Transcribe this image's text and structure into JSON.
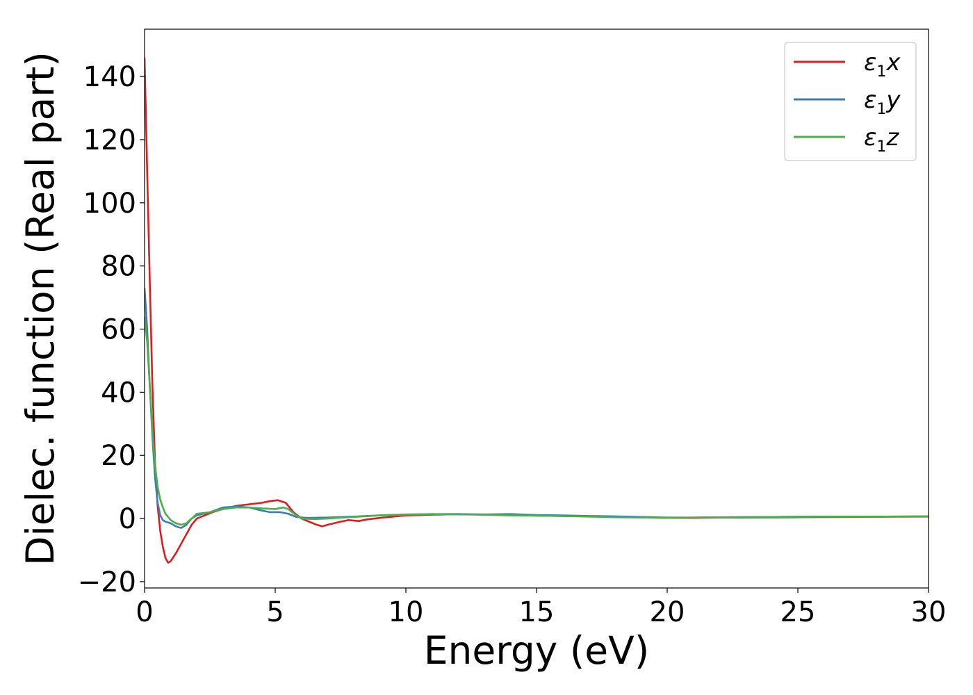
{
  "chart_data": {
    "type": "line",
    "title": "",
    "xlabel": "Energy (eV)",
    "ylabel": "Dielec. function (Real part)",
    "xlim": [
      0,
      30
    ],
    "ylim": [
      -22,
      155
    ],
    "xticks": [
      0,
      5,
      10,
      15,
      20,
      25,
      30
    ],
    "yticks": [
      -20,
      0,
      20,
      40,
      60,
      80,
      100,
      120,
      140
    ],
    "xtick_labels": [
      "0",
      "5",
      "10",
      "15",
      "20",
      "25",
      "30"
    ],
    "ytick_labels": [
      "−20",
      "0",
      "20",
      "40",
      "60",
      "80",
      "100",
      "120",
      "140"
    ],
    "grid": false,
    "legend_position": "top-right",
    "series": [
      {
        "name": "ε1x",
        "color": "#e41a1c",
        "points": [
          [
            0,
            146
          ],
          [
            0.1,
            110
          ],
          [
            0.2,
            75
          ],
          [
            0.3,
            42
          ],
          [
            0.4,
            18
          ],
          [
            0.5,
            4
          ],
          [
            0.6,
            -4
          ],
          [
            0.7,
            -9
          ],
          [
            0.8,
            -12.5
          ],
          [
            0.9,
            -14
          ],
          [
            1.0,
            -13.5
          ],
          [
            1.2,
            -11
          ],
          [
            1.5,
            -6.5
          ],
          [
            1.8,
            -2
          ],
          [
            2.0,
            0
          ],
          [
            2.3,
            1
          ],
          [
            2.6,
            2
          ],
          [
            3.0,
            3
          ],
          [
            3.5,
            4
          ],
          [
            4.0,
            4.5
          ],
          [
            4.5,
            5
          ],
          [
            4.8,
            5.5
          ],
          [
            5.1,
            5.8
          ],
          [
            5.4,
            5
          ],
          [
            5.7,
            2
          ],
          [
            6.0,
            0
          ],
          [
            6.3,
            -1
          ],
          [
            6.6,
            -2
          ],
          [
            6.8,
            -2.5
          ],
          [
            7.0,
            -2
          ],
          [
            7.5,
            -1
          ],
          [
            7.8,
            -0.5
          ],
          [
            8.2,
            -0.8
          ],
          [
            8.5,
            -0.3
          ],
          [
            9.0,
            0.2
          ],
          [
            10.0,
            1
          ],
          [
            11.0,
            1.2
          ],
          [
            12.0,
            1.4
          ],
          [
            13.0,
            1.2
          ],
          [
            14.0,
            1.1
          ],
          [
            15.0,
            0.9
          ],
          [
            16.0,
            0.8
          ],
          [
            17.0,
            0.7
          ],
          [
            18.0,
            0.6
          ],
          [
            19.0,
            0.4
          ],
          [
            20.0,
            0.2
          ],
          [
            21.0,
            0.2
          ],
          [
            22.0,
            0.3
          ],
          [
            23.0,
            0.3
          ],
          [
            25.0,
            0.4
          ],
          [
            27.0,
            0.5
          ],
          [
            30.0,
            0.6
          ]
        ]
      },
      {
        "name": "ε1y",
        "color": "#377eb8",
        "points": [
          [
            0,
            73
          ],
          [
            0.1,
            60
          ],
          [
            0.2,
            42
          ],
          [
            0.3,
            26
          ],
          [
            0.4,
            13
          ],
          [
            0.5,
            5
          ],
          [
            0.6,
            1
          ],
          [
            0.7,
            -0.5
          ],
          [
            0.8,
            -1
          ],
          [
            1.0,
            -1.5
          ],
          [
            1.2,
            -2.5
          ],
          [
            1.4,
            -3
          ],
          [
            1.6,
            -2
          ],
          [
            1.8,
            0
          ],
          [
            2.0,
            1
          ],
          [
            2.5,
            2
          ],
          [
            3.0,
            3.5
          ],
          [
            3.5,
            3.8
          ],
          [
            4.0,
            3.5
          ],
          [
            4.5,
            2.5
          ],
          [
            4.8,
            2
          ],
          [
            5.2,
            2
          ],
          [
            5.5,
            1.5
          ],
          [
            5.8,
            0.5
          ],
          [
            6.2,
            0.2
          ],
          [
            7.0,
            0.3
          ],
          [
            8.0,
            0.6
          ],
          [
            9.0,
            1
          ],
          [
            10.0,
            1.2
          ],
          [
            11.0,
            1.4
          ],
          [
            12.0,
            1.4
          ],
          [
            13.0,
            1.3
          ],
          [
            14.0,
            1.4
          ],
          [
            15.0,
            1.1
          ],
          [
            16.0,
            1
          ],
          [
            17.0,
            0.8
          ],
          [
            18.0,
            0.7
          ],
          [
            19.0,
            0.5
          ],
          [
            20.0,
            0.3
          ],
          [
            21.0,
            0.3
          ],
          [
            22.0,
            0.4
          ],
          [
            24.0,
            0.5
          ],
          [
            26.0,
            0.6
          ],
          [
            28.0,
            0.6
          ],
          [
            30.0,
            0.7
          ]
        ]
      },
      {
        "name": "ε1z",
        "color": "#4daf4a",
        "points": [
          [
            0,
            64
          ],
          [
            0.1,
            56
          ],
          [
            0.2,
            42
          ],
          [
            0.3,
            28
          ],
          [
            0.4,
            17
          ],
          [
            0.5,
            10
          ],
          [
            0.6,
            6
          ],
          [
            0.7,
            3.5
          ],
          [
            0.8,
            1.5
          ],
          [
            1.0,
            -0.5
          ],
          [
            1.2,
            -1.5
          ],
          [
            1.4,
            -2
          ],
          [
            1.6,
            -1.5
          ],
          [
            1.8,
            0
          ],
          [
            2.0,
            1.5
          ],
          [
            2.5,
            2
          ],
          [
            3.0,
            3
          ],
          [
            3.5,
            3.5
          ],
          [
            4.0,
            3.5
          ],
          [
            4.5,
            3.2
          ],
          [
            5.0,
            3
          ],
          [
            5.3,
            3.5
          ],
          [
            5.5,
            3
          ],
          [
            5.8,
            1
          ],
          [
            6.0,
            0
          ],
          [
            6.5,
            -0.2
          ],
          [
            7.0,
            0
          ],
          [
            8.0,
            0.5
          ],
          [
            9.0,
            1
          ],
          [
            10.0,
            1.3
          ],
          [
            11.0,
            1.4
          ],
          [
            12.0,
            1.3
          ],
          [
            13.0,
            1.2
          ],
          [
            14.0,
            1
          ],
          [
            15.0,
            0.9
          ],
          [
            16.0,
            0.8
          ],
          [
            17.0,
            0.6
          ],
          [
            18.0,
            0.4
          ],
          [
            19.0,
            0.3
          ],
          [
            20.0,
            0.2
          ],
          [
            21.0,
            0.3
          ],
          [
            22.0,
            0.4
          ],
          [
            24.0,
            0.5
          ],
          [
            26.0,
            0.6
          ],
          [
            28.0,
            0.6
          ],
          [
            30.0,
            0.7
          ]
        ]
      }
    ]
  }
}
